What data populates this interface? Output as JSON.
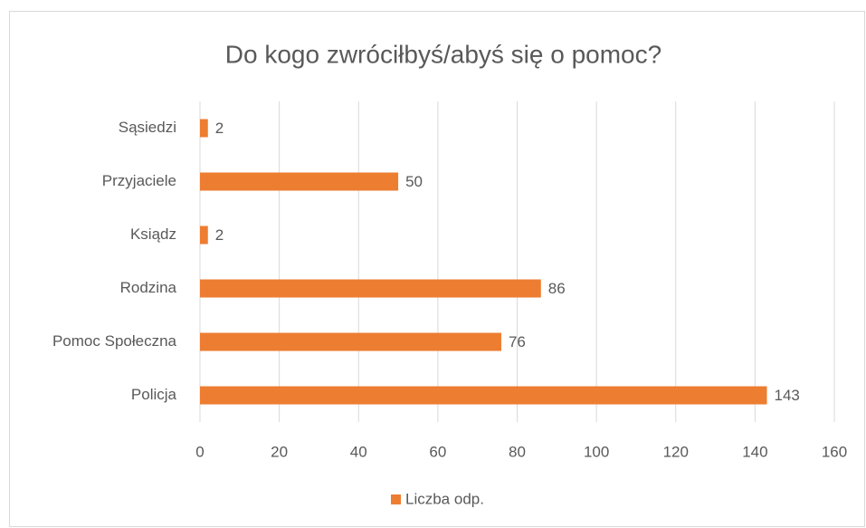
{
  "chart_data": {
    "type": "bar",
    "orientation": "horizontal",
    "title": "Do kogo zwróciłbyś/abyś się o pomoc?",
    "categories": [
      "Sąsiedzi",
      "Przyjaciele",
      "Ksiądz",
      "Rodzina",
      "Pomoc Społeczna",
      "Policja"
    ],
    "series": [
      {
        "name": "Liczba odp.",
        "color": "#ed7d31",
        "values": [
          2,
          50,
          2,
          86,
          76,
          143
        ]
      }
    ],
    "xlim": [
      0,
      160
    ],
    "xticks": [
      0,
      20,
      40,
      60,
      80,
      100,
      120,
      140,
      160
    ],
    "grid": true,
    "legend": "bottom"
  }
}
